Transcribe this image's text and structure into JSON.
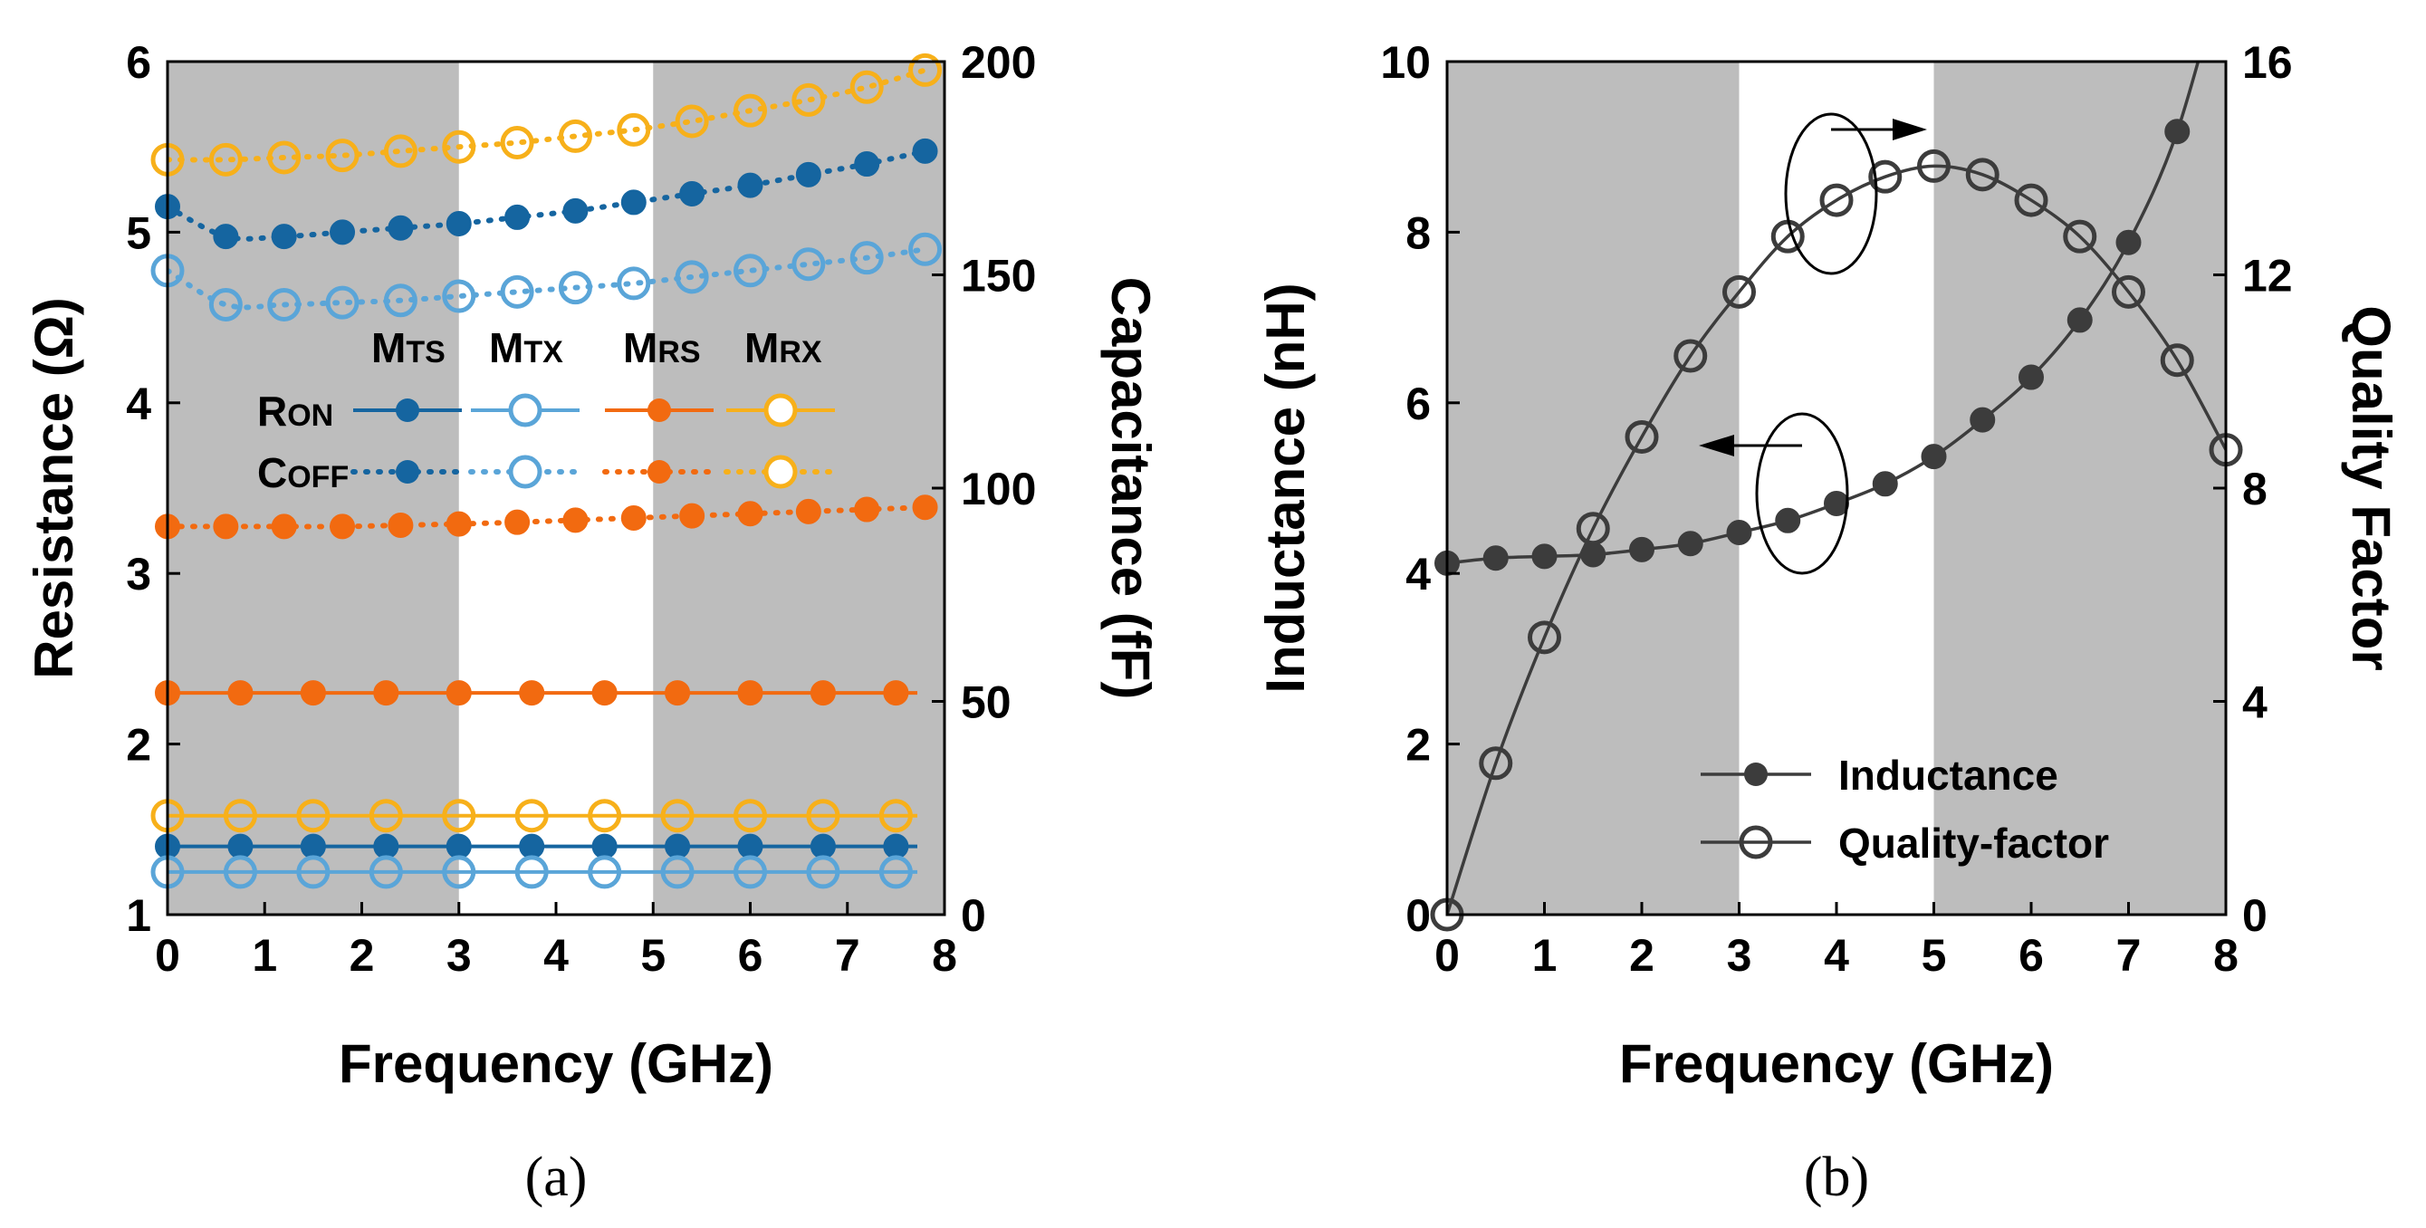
{
  "chart_data": [
    {
      "type": "line",
      "panel": "(a)",
      "xlabel": "Frequency (GHz)",
      "ylabel": "Resistance (Ω)",
      "y2label": "Capacitance (fF)",
      "xlim": [
        0,
        8
      ],
      "ylim": [
        1,
        6
      ],
      "y2lim": [
        0,
        200
      ],
      "xticks": [
        "0",
        "1",
        "2",
        "3",
        "4",
        "5",
        "6",
        "7",
        "8"
      ],
      "yticks": [
        "1",
        "2",
        "3",
        "4",
        "5",
        "6"
      ],
      "y2ticks": [
        "0",
        "50",
        "100",
        "150",
        "200"
      ],
      "shaded_bands": [
        [
          0,
          3
        ],
        [
          5,
          8
        ]
      ],
      "legend": {
        "columns": [
          {
            "main": "M",
            "sub": "TS"
          },
          {
            "main": "M",
            "sub": "TX"
          },
          {
            "main": "M",
            "sub": "RS"
          },
          {
            "main": "M",
            "sub": "RX"
          }
        ],
        "rows": [
          {
            "main": "R",
            "sub": "ON"
          },
          {
            "main": "C",
            "sub": "OFF"
          }
        ]
      },
      "colors": {
        "MTS": "#1565a0",
        "MTX": "#5aa5d8",
        "MRS": "#f26a10",
        "MRX": "#f7b01a"
      },
      "series": [
        {
          "name": "MTS",
          "kind": "RON",
          "axis": "left",
          "color": "#1565a0",
          "marker": "filled",
          "x": [
            0,
            0.75,
            1.5,
            2.25,
            3,
            3.75,
            4.5,
            5.25,
            6,
            6.75,
            7.5
          ],
          "y": [
            1.4,
            1.4,
            1.4,
            1.4,
            1.4,
            1.4,
            1.4,
            1.4,
            1.4,
            1.4,
            1.4
          ]
        },
        {
          "name": "MTX",
          "kind": "RON",
          "axis": "left",
          "color": "#5aa5d8",
          "marker": "open",
          "x": [
            0,
            0.75,
            1.5,
            2.25,
            3,
            3.75,
            4.5,
            5.25,
            6,
            6.75,
            7.5
          ],
          "y": [
            1.25,
            1.25,
            1.25,
            1.25,
            1.25,
            1.25,
            1.25,
            1.25,
            1.25,
            1.25,
            1.25
          ]
        },
        {
          "name": "MRS",
          "kind": "RON",
          "axis": "left",
          "color": "#f26a10",
          "marker": "filled",
          "x": [
            0,
            0.75,
            1.5,
            2.25,
            3,
            3.75,
            4.5,
            5.25,
            6,
            6.75,
            7.5
          ],
          "y": [
            2.3,
            2.3,
            2.3,
            2.3,
            2.3,
            2.3,
            2.3,
            2.3,
            2.3,
            2.3,
            2.3
          ]
        },
        {
          "name": "MRX",
          "kind": "RON",
          "axis": "left",
          "color": "#f7b01a",
          "marker": "open",
          "x": [
            0,
            0.75,
            1.5,
            2.25,
            3,
            3.75,
            4.5,
            5.25,
            6,
            6.75,
            7.5
          ],
          "y": [
            1.58,
            1.58,
            1.58,
            1.58,
            1.58,
            1.58,
            1.58,
            1.58,
            1.58,
            1.58,
            1.58
          ]
        },
        {
          "name": "MTS",
          "kind": "COFF",
          "axis": "right",
          "color": "#1565a0",
          "marker": "filled",
          "x": [
            0,
            0.6,
            1.2,
            1.8,
            2.4,
            3.0,
            3.6,
            4.2,
            4.8,
            5.4,
            6.0,
            6.6,
            7.2,
            7.8
          ],
          "y": [
            166,
            159,
            159,
            160,
            161,
            162,
            163.5,
            165,
            167,
            169,
            171,
            173.5,
            176,
            179
          ]
        },
        {
          "name": "MTX",
          "kind": "COFF",
          "axis": "right",
          "color": "#5aa5d8",
          "marker": "open",
          "x": [
            0,
            0.6,
            1.2,
            1.8,
            2.4,
            3.0,
            3.6,
            4.2,
            4.8,
            5.4,
            6.0,
            6.6,
            7.2,
            7.8
          ],
          "y": [
            151,
            143,
            143,
            143.5,
            144,
            145,
            146,
            147,
            148,
            149.5,
            151,
            152.5,
            154,
            156
          ]
        },
        {
          "name": "MRS",
          "kind": "COFF",
          "axis": "right",
          "color": "#f26a10",
          "marker": "filled",
          "x": [
            0,
            0.6,
            1.2,
            1.8,
            2.4,
            3.0,
            3.6,
            4.2,
            4.8,
            5.4,
            6.0,
            6.6,
            7.2,
            7.8
          ],
          "y": [
            91,
            91,
            91,
            91,
            91.3,
            91.6,
            92,
            92.5,
            93,
            93.5,
            94,
            94.5,
            95,
            95.5
          ]
        },
        {
          "name": "MRX",
          "kind": "COFF",
          "axis": "right",
          "color": "#f7b01a",
          "marker": "open",
          "x": [
            0,
            0.6,
            1.2,
            1.8,
            2.4,
            3.0,
            3.6,
            4.2,
            4.8,
            5.4,
            6.0,
            6.6,
            7.2,
            7.8
          ],
          "y": [
            177,
            177,
            177.5,
            178,
            179,
            180,
            181,
            182.5,
            184,
            186,
            188.5,
            191,
            194,
            198
          ]
        }
      ]
    },
    {
      "type": "line",
      "panel": "(b)",
      "xlabel": "Frequency (GHz)",
      "ylabel": "Inductance (nH)",
      "y2label": "Quality Factor",
      "xlim": [
        0,
        8
      ],
      "ylim": [
        0,
        10
      ],
      "y2lim": [
        0,
        16
      ],
      "xticks": [
        "0",
        "1",
        "2",
        "3",
        "4",
        "5",
        "6",
        "7",
        "8"
      ],
      "yticks": [
        "0",
        "2",
        "4",
        "6",
        "8",
        "10"
      ],
      "y2ticks": [
        "0",
        "4",
        "8",
        "12",
        "16"
      ],
      "shaded_bands": [
        [
          0,
          3
        ],
        [
          5,
          8
        ]
      ],
      "legend_position": "bottom-right",
      "series": [
        {
          "name": "Inductance",
          "axis": "left",
          "color": "#3c3c3c",
          "marker": "filled",
          "x": [
            0,
            0.5,
            1,
            1.5,
            2,
            2.5,
            3,
            3.5,
            4,
            4.5,
            5,
            5.5,
            6,
            6.5,
            7,
            7.5
          ],
          "y": [
            4.12,
            4.18,
            4.2,
            4.22,
            4.28,
            4.35,
            4.48,
            4.62,
            4.82,
            5.05,
            5.37,
            5.8,
            6.3,
            6.97,
            7.88,
            9.18
          ]
        },
        {
          "name": "Quality-factor",
          "axis": "right",
          "color": "#3c3c3c",
          "marker": "open",
          "x": [
            0,
            0.5,
            1,
            1.5,
            2,
            2.5,
            3,
            3.5,
            4,
            4.5,
            5,
            5.5,
            6,
            6.5,
            7,
            7.5,
            8
          ],
          "y": [
            0,
            2.84,
            5.2,
            7.24,
            8.96,
            10.48,
            11.68,
            12.72,
            13.4,
            13.84,
            14.04,
            13.88,
            13.4,
            12.72,
            11.68,
            10.4,
            8.72
          ]
        }
      ]
    }
  ]
}
